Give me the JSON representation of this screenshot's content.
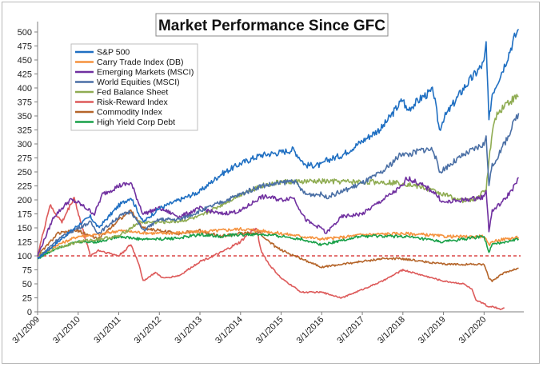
{
  "chart_data": {
    "type": "line",
    "title": "Market Performance Since GFC",
    "xlabel": "",
    "ylabel": "",
    "ylim": [
      0,
      510
    ],
    "x_ticks": [
      "3/1/2009",
      "3/1/2010",
      "3/1/2011",
      "3/1/2012",
      "3/1/2013",
      "3/1/2014",
      "3/1/2015",
      "3/1/2016",
      "3/1/2017",
      "3/1/2018",
      "3/1/2019",
      "3/1/2020"
    ],
    "y_ticks": [
      0,
      25,
      50,
      75,
      100,
      125,
      150,
      175,
      200,
      225,
      250,
      275,
      300,
      325,
      350,
      375,
      400,
      425,
      450,
      475,
      500
    ],
    "grid": false,
    "legend_position": "top-left",
    "reference_line": {
      "y": 100,
      "color": "#d32020",
      "style": "dashed"
    },
    "series": [
      {
        "name": "S&P 500",
        "color": "#1f6fc2",
        "x": [
          2009.0,
          2009.5,
          2010.0,
          2010.3,
          2010.5,
          2011.0,
          2011.3,
          2011.6,
          2012.0,
          2012.5,
          2013.0,
          2013.5,
          2014.0,
          2014.5,
          2015.0,
          2015.3,
          2015.6,
          2016.0,
          2016.1,
          2016.5,
          2017.0,
          2017.5,
          2018.0,
          2018.1,
          2018.5,
          2018.75,
          2018.9,
          2019.0,
          2019.5,
          2020.0,
          2020.05,
          2020.12,
          2020.2,
          2020.5,
          2020.75,
          2020.85
        ],
        "values": [
          95,
          125,
          155,
          170,
          150,
          190,
          205,
          160,
          185,
          200,
          215,
          245,
          265,
          280,
          285,
          290,
          262,
          262,
          270,
          280,
          305,
          330,
          380,
          360,
          385,
          395,
          325,
          345,
          400,
          445,
          480,
          340,
          390,
          440,
          490,
          505
        ]
      },
      {
        "name": "Carry Trade Index (DB)",
        "color": "#f5923e",
        "x": [
          2009.0,
          2009.5,
          2010.0,
          2010.5,
          2011.0,
          2011.5,
          2012.0,
          2013.0,
          2014.0,
          2014.5,
          2015.0,
          2015.5,
          2016.0,
          2016.5,
          2017.0,
          2018.0,
          2018.5,
          2019.0,
          2019.5,
          2020.0,
          2020.12,
          2020.2,
          2020.5,
          2020.85
        ],
        "values": [
          100,
          120,
          135,
          138,
          145,
          142,
          140,
          143,
          148,
          145,
          140,
          135,
          130,
          133,
          138,
          140,
          138,
          135,
          134,
          135,
          118,
          126,
          130,
          133
        ]
      },
      {
        "name": "Emerging Markets (MSCI)",
        "color": "#7030a0",
        "x": [
          2009.0,
          2009.4,
          2009.8,
          2010.0,
          2010.4,
          2010.6,
          2011.0,
          2011.3,
          2011.6,
          2011.8,
          2012.0,
          2012.5,
          2013.0,
          2013.5,
          2014.0,
          2014.5,
          2014.7,
          2015.0,
          2015.3,
          2015.6,
          2015.8,
          2016.0,
          2016.1,
          2016.5,
          2017.0,
          2017.5,
          2018.0,
          2018.1,
          2018.5,
          2018.75,
          2019.0,
          2019.5,
          2020.0,
          2020.05,
          2020.12,
          2020.2,
          2020.5,
          2020.75,
          2020.85
        ],
        "values": [
          100,
          170,
          200,
          195,
          175,
          210,
          225,
          230,
          175,
          180,
          185,
          170,
          185,
          175,
          180,
          205,
          205,
          200,
          205,
          165,
          155,
          150,
          140,
          170,
          175,
          200,
          225,
          240,
          225,
          215,
          195,
          200,
          205,
          220,
          145,
          180,
          200,
          225,
          240
        ]
      },
      {
        "name": "World Equities (MSCI)",
        "color": "#4a6fa5",
        "x": [
          2009.0,
          2009.5,
          2010.0,
          2010.3,
          2010.5,
          2011.0,
          2011.3,
          2011.6,
          2012.0,
          2012.5,
          2013.0,
          2013.5,
          2014.0,
          2014.5,
          2015.0,
          2015.3,
          2015.6,
          2016.0,
          2016.1,
          2016.5,
          2017.0,
          2017.5,
          2018.0,
          2018.1,
          2018.5,
          2018.75,
          2018.9,
          2019.0,
          2019.5,
          2020.0,
          2020.05,
          2020.12,
          2020.2,
          2020.5,
          2020.75,
          2020.85
        ],
        "values": [
          95,
          130,
          150,
          160,
          140,
          170,
          180,
          145,
          165,
          165,
          180,
          195,
          210,
          225,
          230,
          235,
          210,
          210,
          205,
          215,
          230,
          250,
          285,
          280,
          290,
          290,
          250,
          255,
          280,
          300,
          310,
          230,
          260,
          300,
          340,
          355
        ]
      },
      {
        "name": "Fed Balance Sheet",
        "color": "#8fac52",
        "x": [
          2009.0,
          2009.5,
          2010.0,
          2011.0,
          2011.5,
          2012.0,
          2012.5,
          2013.0,
          2013.5,
          2014.0,
          2014.5,
          2015.0,
          2016.0,
          2017.0,
          2017.5,
          2018.0,
          2018.5,
          2019.0,
          2019.5,
          2019.8,
          2020.0,
          2020.05,
          2020.12,
          2020.25,
          2020.5,
          2020.85
        ],
        "values": [
          100,
          115,
          125,
          135,
          160,
          160,
          162,
          170,
          190,
          210,
          225,
          232,
          233,
          232,
          232,
          230,
          222,
          210,
          198,
          202,
          215,
          220,
          270,
          345,
          370,
          385
        ]
      },
      {
        "name": "Risk-Reward Index",
        "color": "#dd5a5a",
        "x": [
          2009.0,
          2009.3,
          2009.6,
          2009.9,
          2010.1,
          2010.3,
          2010.5,
          2011.0,
          2011.3,
          2011.5,
          2011.6,
          2011.9,
          2012.1,
          2012.5,
          2013.0,
          2013.5,
          2014.0,
          2014.2,
          2014.4,
          2014.5,
          2014.7,
          2015.0,
          2015.5,
          2016.0,
          2016.5,
          2017.0,
          2017.5,
          2018.0,
          2018.5,
          2019.0,
          2019.5,
          2019.7,
          2019.8,
          2020.0,
          2020.1,
          2020.2,
          2020.4,
          2020.5
        ],
        "values": [
          100,
          190,
          160,
          205,
          150,
          100,
          110,
          100,
          120,
          85,
          55,
          70,
          60,
          65,
          90,
          105,
          125,
          140,
          150,
          110,
          85,
          60,
          35,
          35,
          25,
          40,
          55,
          75,
          65,
          55,
          50,
          40,
          20,
          15,
          8,
          10,
          5,
          7
        ]
      },
      {
        "name": "Commodity Index",
        "color": "#b5652a",
        "x": [
          2009.0,
          2009.5,
          2010.0,
          2010.5,
          2011.0,
          2011.3,
          2011.6,
          2012.0,
          2012.5,
          2013.0,
          2013.5,
          2014.0,
          2014.5,
          2014.7,
          2015.0,
          2015.5,
          2016.0,
          2016.5,
          2017.0,
          2017.5,
          2018.0,
          2018.5,
          2019.0,
          2019.5,
          2020.0,
          2020.12,
          2020.2,
          2020.5,
          2020.85
        ],
        "values": [
          100,
          140,
          145,
          130,
          165,
          180,
          150,
          145,
          140,
          145,
          135,
          140,
          140,
          125,
          110,
          95,
          80,
          85,
          90,
          95,
          95,
          90,
          85,
          85,
          85,
          60,
          55,
          70,
          78
        ]
      },
      {
        "name": "High Yield Corp Debt",
        "color": "#18a048",
        "x": [
          2009.0,
          2009.5,
          2010.0,
          2010.5,
          2011.0,
          2011.5,
          2012.0,
          2012.5,
          2013.0,
          2013.5,
          2014.0,
          2014.5,
          2015.0,
          2015.5,
          2016.0,
          2016.5,
          2017.0,
          2017.5,
          2018.0,
          2018.5,
          2019.0,
          2019.5,
          2020.0,
          2020.12,
          2020.2,
          2020.5,
          2020.85
        ],
        "values": [
          95,
          115,
          125,
          125,
          135,
          130,
          130,
          132,
          138,
          135,
          138,
          138,
          135,
          130,
          120,
          128,
          135,
          135,
          135,
          130,
          125,
          130,
          135,
          105,
          120,
          125,
          130
        ]
      }
    ]
  }
}
